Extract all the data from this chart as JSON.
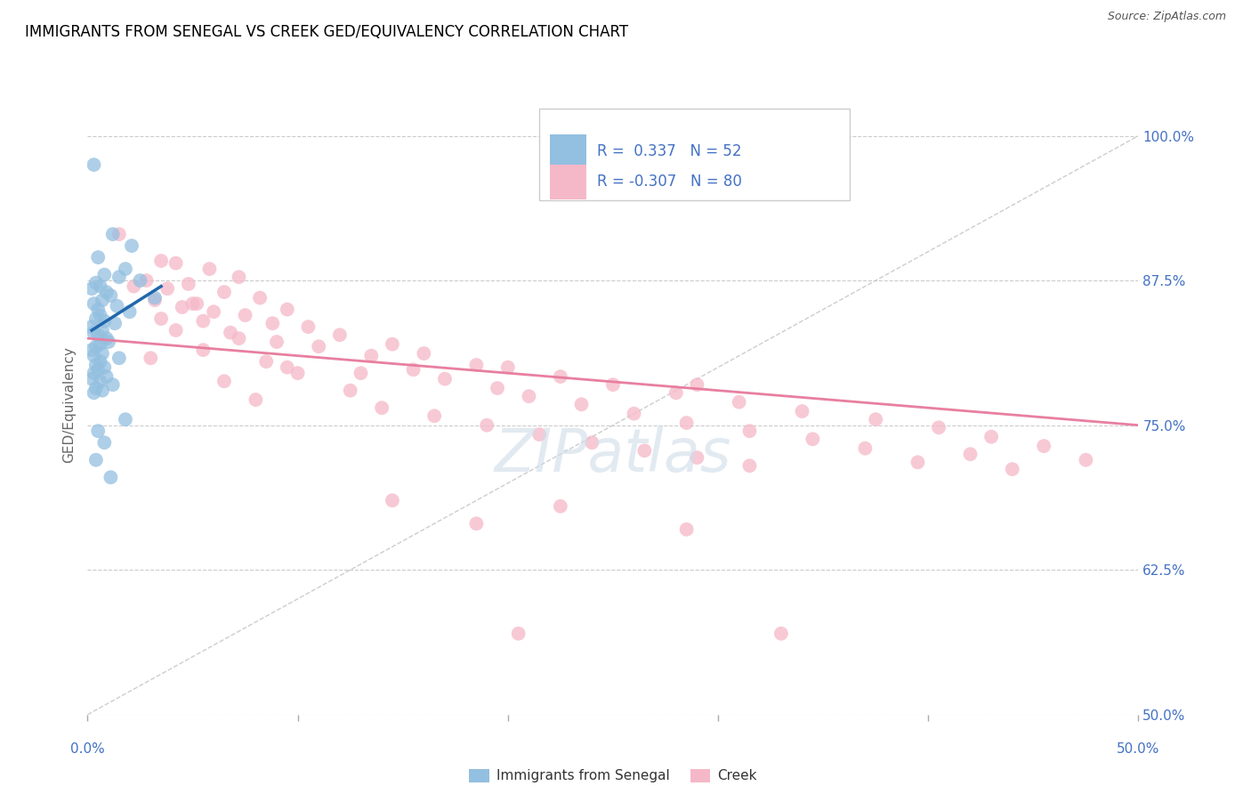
{
  "title": "IMMIGRANTS FROM SENEGAL VS CREEK GED/EQUIVALENCY CORRELATION CHART",
  "source": "Source: ZipAtlas.com",
  "ylabel": "GED/Equivalency",
  "R1": 0.337,
  "N1": 52,
  "R2": -0.307,
  "N2": 80,
  "legend_label1": "Immigrants from Senegal",
  "legend_label2": "Creek",
  "blue_color": "#93bfe0",
  "pink_color": "#f5b8c8",
  "blue_line_color": "#2166ac",
  "pink_line_color": "#e87fa0",
  "ref_line_color": "#c8c8c8",
  "axis_label_color": "#4472c4",
  "xlim": [
    0.0,
    50.0
  ],
  "ylim": [
    50.0,
    103.5
  ],
  "yticks": [
    50.0,
    62.5,
    75.0,
    87.5,
    100.0
  ],
  "xticks": [
    0.0,
    10.0,
    20.0,
    30.0,
    40.0,
    50.0
  ],
  "blue_dots": [
    [
      0.3,
      97.5
    ],
    [
      1.2,
      91.5
    ],
    [
      2.1,
      90.5
    ],
    [
      0.5,
      89.5
    ],
    [
      1.8,
      88.5
    ],
    [
      0.8,
      88.0
    ],
    [
      1.5,
      87.8
    ],
    [
      2.5,
      87.5
    ],
    [
      0.4,
      87.3
    ],
    [
      0.6,
      87.0
    ],
    [
      0.2,
      86.8
    ],
    [
      0.9,
      86.5
    ],
    [
      1.1,
      86.2
    ],
    [
      3.2,
      86.0
    ],
    [
      0.7,
      85.8
    ],
    [
      0.3,
      85.5
    ],
    [
      1.4,
      85.3
    ],
    [
      0.5,
      85.0
    ],
    [
      2.0,
      84.8
    ],
    [
      0.6,
      84.5
    ],
    [
      0.4,
      84.2
    ],
    [
      0.8,
      84.0
    ],
    [
      1.3,
      83.8
    ],
    [
      0.2,
      83.5
    ],
    [
      0.7,
      83.2
    ],
    [
      0.3,
      83.0
    ],
    [
      0.5,
      82.8
    ],
    [
      0.9,
      82.5
    ],
    [
      1.0,
      82.2
    ],
    [
      0.6,
      82.0
    ],
    [
      0.4,
      81.8
    ],
    [
      0.2,
      81.5
    ],
    [
      0.7,
      81.2
    ],
    [
      0.3,
      81.0
    ],
    [
      1.5,
      80.8
    ],
    [
      0.6,
      80.5
    ],
    [
      0.4,
      80.2
    ],
    [
      0.8,
      80.0
    ],
    [
      0.5,
      79.8
    ],
    [
      0.3,
      79.5
    ],
    [
      0.9,
      79.2
    ],
    [
      0.2,
      79.0
    ],
    [
      0.6,
      78.8
    ],
    [
      1.2,
      78.5
    ],
    [
      0.4,
      78.2
    ],
    [
      0.7,
      78.0
    ],
    [
      0.3,
      77.8
    ],
    [
      1.8,
      75.5
    ],
    [
      0.5,
      74.5
    ],
    [
      0.8,
      73.5
    ],
    [
      0.4,
      72.0
    ],
    [
      1.1,
      70.5
    ]
  ],
  "pink_dots": [
    [
      1.5,
      91.5
    ],
    [
      3.5,
      89.2
    ],
    [
      4.2,
      89.0
    ],
    [
      5.8,
      88.5
    ],
    [
      7.2,
      87.8
    ],
    [
      2.8,
      87.5
    ],
    [
      4.8,
      87.2
    ],
    [
      2.2,
      87.0
    ],
    [
      3.8,
      86.8
    ],
    [
      6.5,
      86.5
    ],
    [
      8.2,
      86.0
    ],
    [
      3.2,
      85.8
    ],
    [
      5.2,
      85.5
    ],
    [
      4.5,
      85.2
    ],
    [
      9.5,
      85.0
    ],
    [
      6.0,
      84.8
    ],
    [
      7.5,
      84.5
    ],
    [
      3.5,
      84.2
    ],
    [
      5.5,
      84.0
    ],
    [
      8.8,
      83.8
    ],
    [
      10.5,
      83.5
    ],
    [
      4.2,
      83.2
    ],
    [
      6.8,
      83.0
    ],
    [
      12.0,
      82.8
    ],
    [
      7.2,
      82.5
    ],
    [
      9.0,
      82.2
    ],
    [
      14.5,
      82.0
    ],
    [
      11.0,
      81.8
    ],
    [
      5.5,
      81.5
    ],
    [
      16.0,
      81.2
    ],
    [
      13.5,
      81.0
    ],
    [
      3.0,
      80.8
    ],
    [
      8.5,
      80.5
    ],
    [
      18.5,
      80.2
    ],
    [
      20.0,
      80.0
    ],
    [
      15.5,
      79.8
    ],
    [
      10.0,
      79.5
    ],
    [
      22.5,
      79.2
    ],
    [
      17.0,
      79.0
    ],
    [
      6.5,
      78.8
    ],
    [
      25.0,
      78.5
    ],
    [
      19.5,
      78.2
    ],
    [
      12.5,
      78.0
    ],
    [
      28.0,
      77.8
    ],
    [
      21.0,
      77.5
    ],
    [
      8.0,
      77.2
    ],
    [
      31.0,
      77.0
    ],
    [
      23.5,
      76.8
    ],
    [
      14.0,
      76.5
    ],
    [
      34.0,
      76.2
    ],
    [
      26.0,
      76.0
    ],
    [
      16.5,
      75.8
    ],
    [
      37.5,
      75.5
    ],
    [
      28.5,
      75.2
    ],
    [
      19.0,
      75.0
    ],
    [
      40.5,
      74.8
    ],
    [
      31.5,
      74.5
    ],
    [
      21.5,
      74.2
    ],
    [
      43.0,
      74.0
    ],
    [
      34.5,
      73.8
    ],
    [
      24.0,
      73.5
    ],
    [
      45.5,
      73.2
    ],
    [
      37.0,
      73.0
    ],
    [
      26.5,
      72.8
    ],
    [
      42.0,
      72.5
    ],
    [
      29.0,
      72.2
    ],
    [
      47.5,
      72.0
    ],
    [
      39.5,
      71.8
    ],
    [
      31.5,
      71.5
    ],
    [
      44.0,
      71.2
    ],
    [
      14.5,
      68.5
    ],
    [
      22.5,
      68.0
    ],
    [
      18.5,
      66.5
    ],
    [
      28.5,
      66.0
    ],
    [
      20.5,
      57.0
    ],
    [
      33.0,
      57.0
    ],
    [
      5.0,
      85.5
    ],
    [
      9.5,
      80.0
    ],
    [
      13.0,
      79.5
    ],
    [
      29.0,
      78.5
    ]
  ],
  "blue_trend_x": [
    0.2,
    3.5
  ],
  "blue_trend_y": [
    83.2,
    87.0
  ],
  "pink_trend_x": [
    0.0,
    50.0
  ],
  "pink_trend_y": [
    82.5,
    75.0
  ],
  "ref_line_x": [
    0.0,
    50.0
  ],
  "ref_line_y": [
    50.0,
    100.0
  ]
}
